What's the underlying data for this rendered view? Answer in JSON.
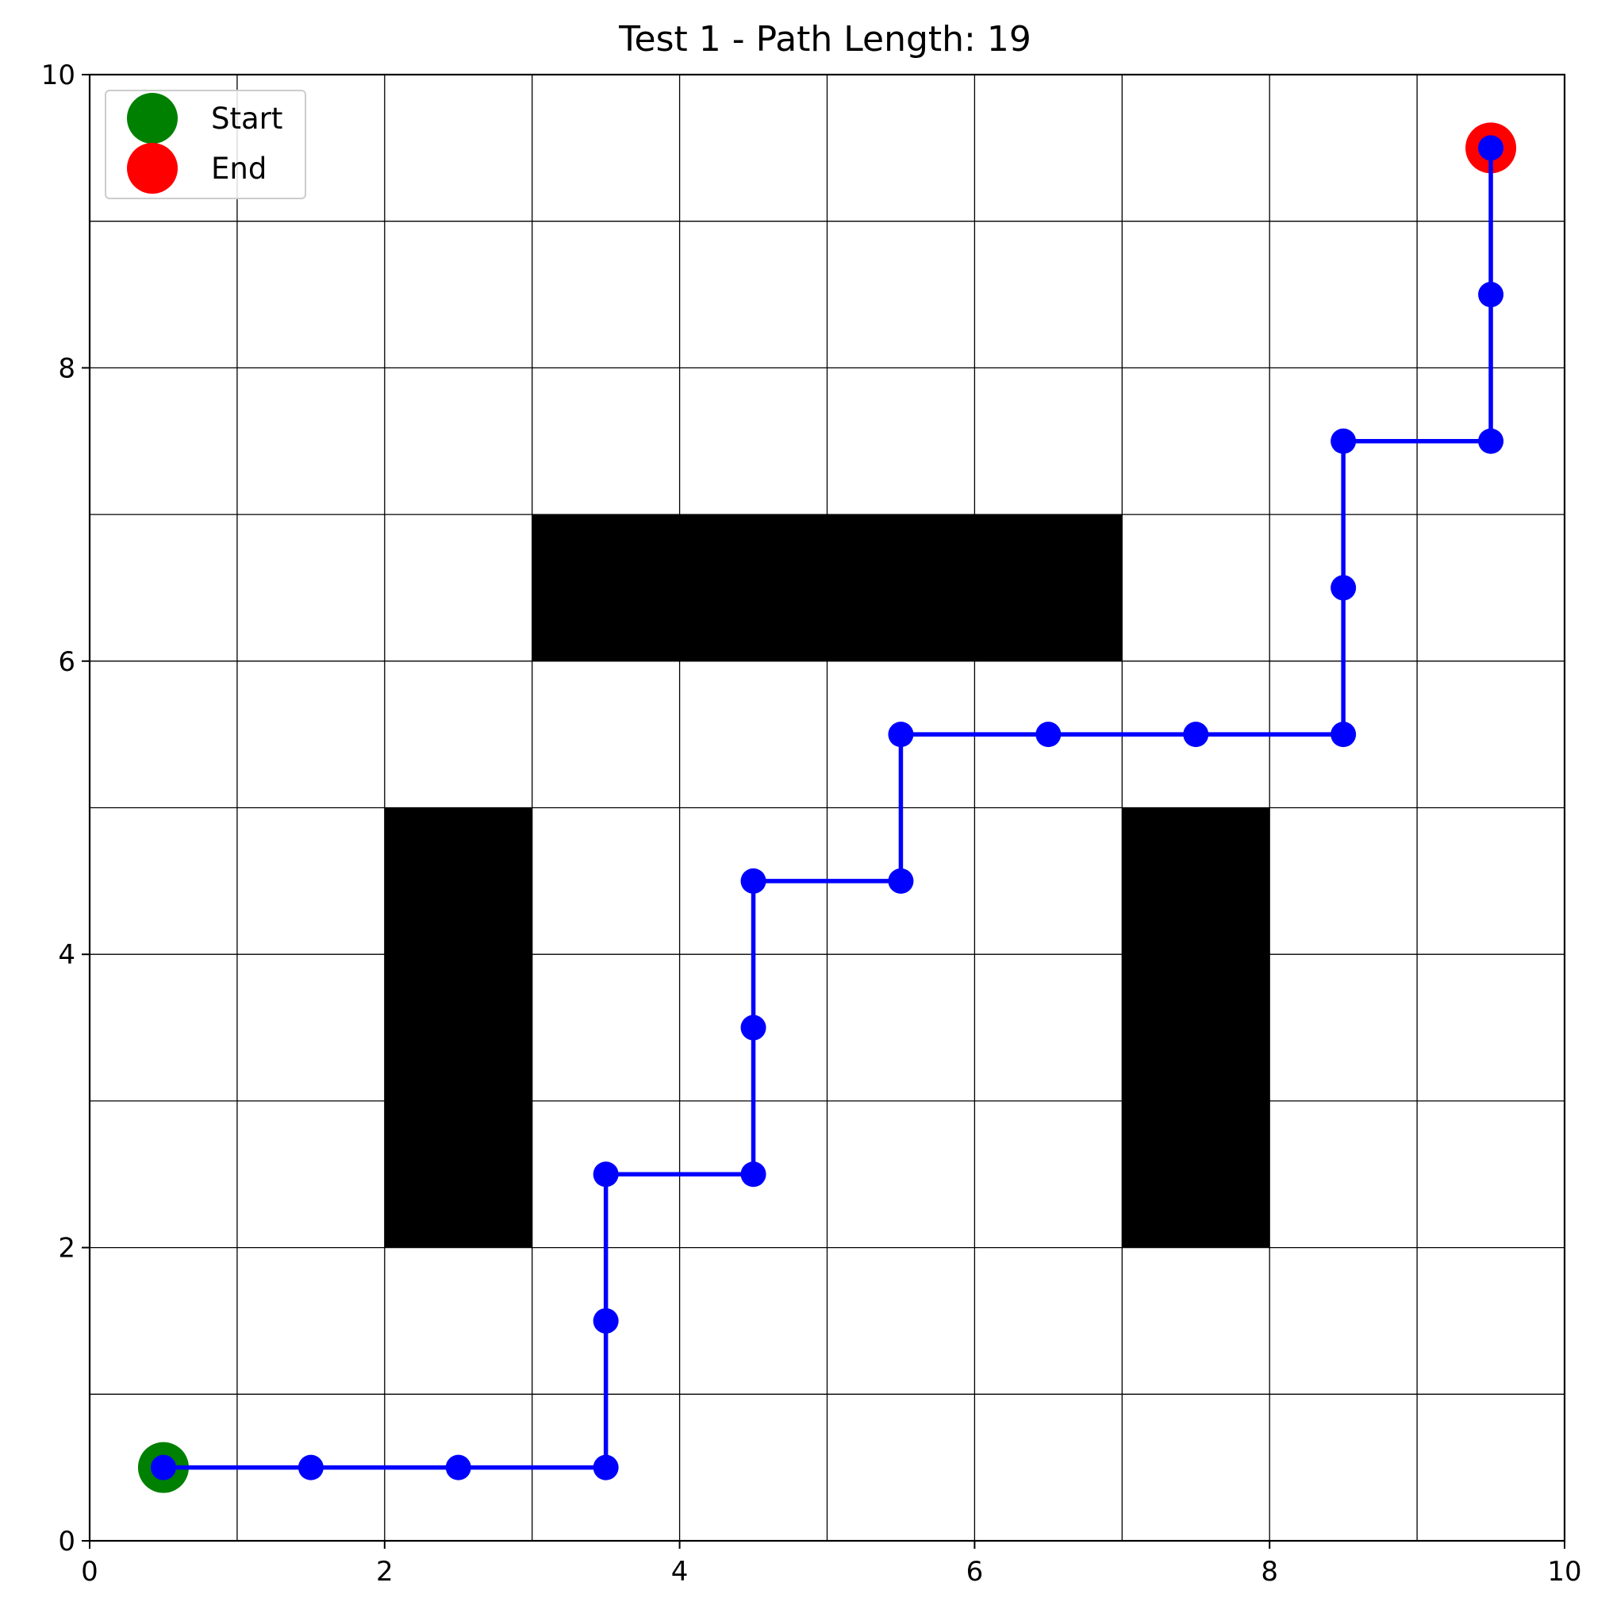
{
  "chart_data": {
    "type": "scatter",
    "title": "Test 1 - Path Length: 19",
    "xlim": [
      0,
      10
    ],
    "ylim": [
      0,
      10
    ],
    "xticks": [
      0,
      2,
      4,
      6,
      8,
      10
    ],
    "yticks": [
      0,
      2,
      4,
      6,
      8,
      10
    ],
    "xtick_labels": [
      "0",
      "2",
      "4",
      "6",
      "8",
      "10"
    ],
    "ytick_labels": [
      "0",
      "2",
      "4",
      "6",
      "8",
      "10"
    ],
    "grid": true,
    "grid_step": 1,
    "legend_position": "upper-left",
    "obstacles": [
      {
        "x0": 3,
        "y0": 6,
        "x1": 7,
        "y1": 7
      },
      {
        "x0": 2,
        "y0": 2,
        "x1": 3,
        "y1": 5
      },
      {
        "x0": 7,
        "y0": 2,
        "x1": 8,
        "y1": 5
      }
    ],
    "obstacle_color": "#000000",
    "path": {
      "color": "#0000ff",
      "points": [
        [
          0.5,
          0.5
        ],
        [
          1.5,
          0.5
        ],
        [
          2.5,
          0.5
        ],
        [
          3.5,
          0.5
        ],
        [
          3.5,
          1.5
        ],
        [
          3.5,
          2.5
        ],
        [
          4.5,
          2.5
        ],
        [
          4.5,
          3.5
        ],
        [
          4.5,
          4.5
        ],
        [
          5.5,
          4.5
        ],
        [
          5.5,
          5.5
        ],
        [
          6.5,
          5.5
        ],
        [
          7.5,
          5.5
        ],
        [
          8.5,
          5.5
        ],
        [
          8.5,
          6.5
        ],
        [
          8.5,
          7.5
        ],
        [
          9.5,
          7.5
        ],
        [
          9.5,
          8.5
        ],
        [
          9.5,
          9.5
        ]
      ]
    },
    "series": [
      {
        "name": "Start",
        "color": "#008000",
        "x": [
          0.5
        ],
        "y": [
          0.5
        ]
      },
      {
        "name": "End",
        "color": "#ff0000",
        "x": [
          9.5
        ],
        "y": [
          9.5
        ]
      }
    ]
  }
}
